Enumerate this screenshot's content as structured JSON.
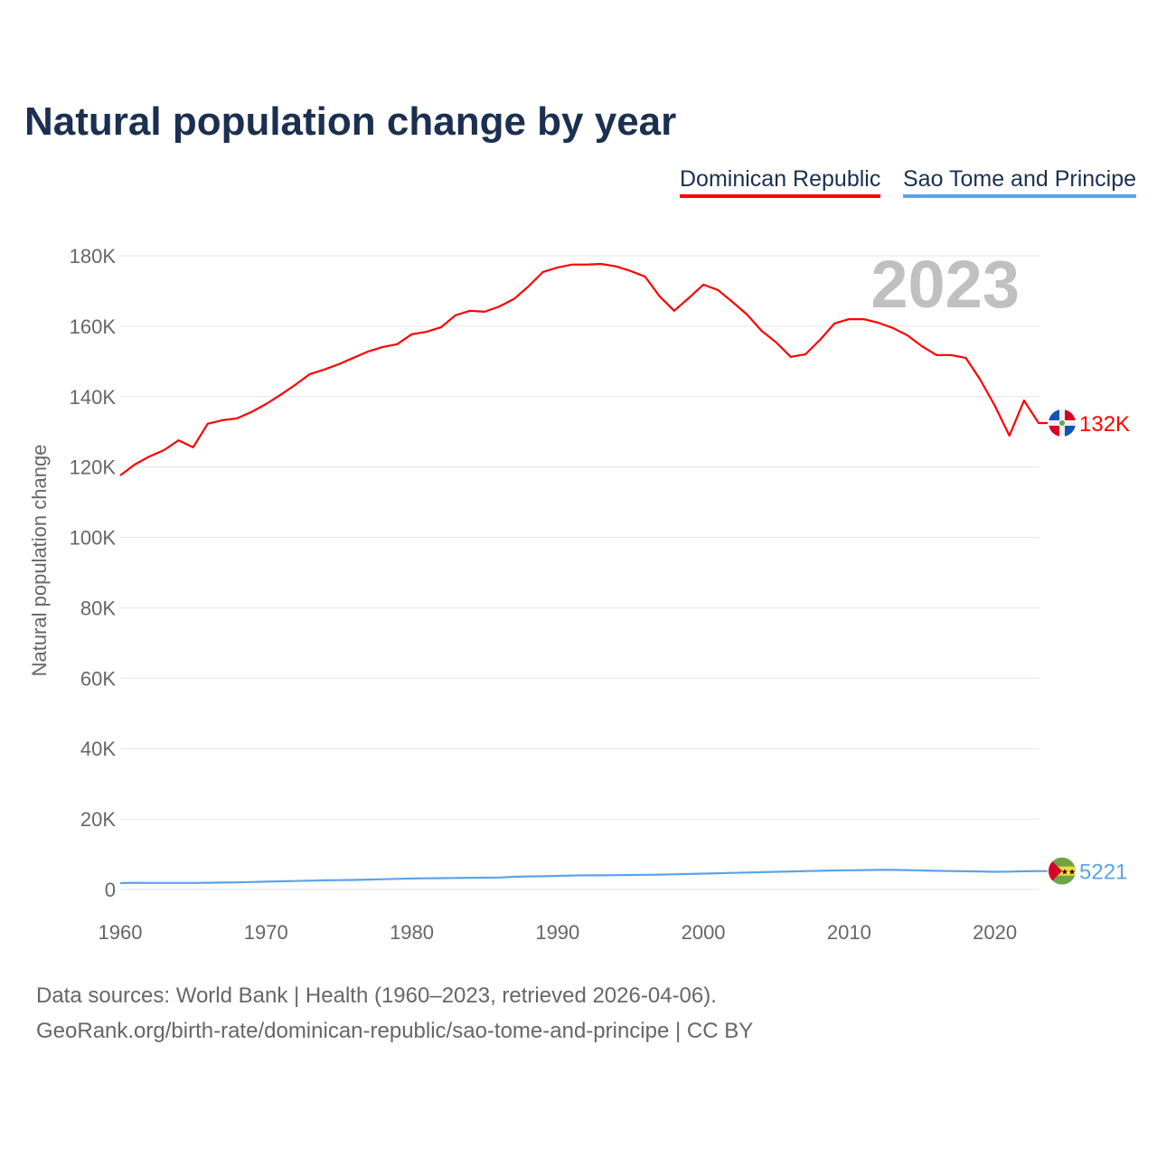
{
  "chart_data": {
    "type": "line",
    "title": "Natural population change by year",
    "ylabel": "Natural population change",
    "xlabel": "",
    "ylim": [
      0,
      180000
    ],
    "xlim": [
      1960,
      2023
    ],
    "y_ticks": [
      0,
      20000,
      40000,
      60000,
      80000,
      100000,
      120000,
      140000,
      160000,
      180000
    ],
    "y_tick_labels": [
      "0",
      "20K",
      "40K",
      "60K",
      "80K",
      "100K",
      "120K",
      "140K",
      "160K",
      "180K"
    ],
    "x_ticks": [
      1960,
      1970,
      1980,
      1990,
      2000,
      2010,
      2020
    ],
    "x_tick_labels": [
      "1960",
      "1970",
      "1980",
      "1990",
      "2000",
      "2010",
      "2020"
    ],
    "grid": true,
    "legend_position": "top-right",
    "year_watermark": "2023",
    "x_start": 1960,
    "series": [
      {
        "name": "Dominican Republic",
        "color": "#ff0000",
        "end_label": "132K",
        "values": [
          117600,
          120700,
          123000,
          124800,
          127600,
          125600,
          132300,
          133300,
          133800,
          135600,
          137900,
          140500,
          143300,
          146400,
          147700,
          149200,
          151000,
          152800,
          154100,
          154900,
          157700,
          158400,
          159700,
          163100,
          164400,
          164100,
          165600,
          167700,
          171300,
          175400,
          176700,
          177500,
          177500,
          177700,
          177000,
          175700,
          174100,
          168500,
          164400,
          168000,
          171800,
          170300,
          166900,
          163300,
          158700,
          155400,
          151300,
          152000,
          156100,
          160800,
          162000,
          162000,
          161000,
          159500,
          157400,
          154300,
          151800,
          151800,
          151000,
          144800,
          137400,
          128900,
          138900,
          132500
        ]
      },
      {
        "name": "Sao Tome and Principe",
        "color": "#5ba3ea",
        "end_label": "5221",
        "values": [
          1800,
          1900,
          1850,
          1850,
          1850,
          1850,
          1900,
          1950,
          2000,
          2100,
          2200,
          2300,
          2400,
          2500,
          2600,
          2650,
          2700,
          2800,
          2900,
          3000,
          3100,
          3150,
          3200,
          3250,
          3300,
          3350,
          3400,
          3600,
          3700,
          3750,
          3850,
          3950,
          4000,
          4000,
          4050,
          4100,
          4150,
          4200,
          4300,
          4400,
          4500,
          4600,
          4700,
          4800,
          4900,
          5000,
          5100,
          5200,
          5300,
          5400,
          5450,
          5500,
          5550,
          5550,
          5500,
          5400,
          5300,
          5200,
          5150,
          5100,
          5000,
          5050,
          5150,
          5221
        ]
      }
    ]
  },
  "footer": {
    "line1": "Data sources: World Bank | Health (1960–2023, retrieved 2026-04-06).",
    "line2": "GeoRank.org/birth-rate/dominican-republic/sao-tome-and-principe | CC BY"
  }
}
